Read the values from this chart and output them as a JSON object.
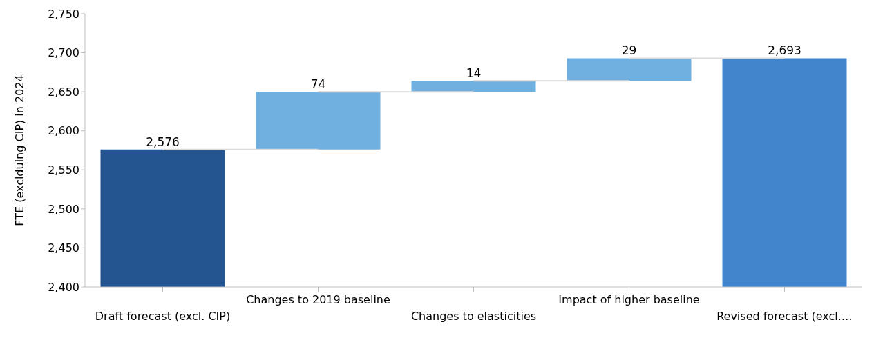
{
  "chart_data": {
    "type": "bar",
    "ylabel": "FTE (exclduing CIP) in 2024",
    "categories": [
      "Draft forecast (excl. CIP)",
      "Changes to 2019 baseline",
      "Changes to elasticities",
      "Impact of higher baseline",
      "Revised forecast (excl.…"
    ],
    "values": [
      2576,
      74,
      14,
      29,
      2693
    ],
    "base": [
      null,
      2576,
      2650,
      2664,
      null
    ],
    "colors": [
      "#255591",
      "#70b0e0",
      "#70b0e0",
      "#70b0e0",
      "#4285cc"
    ],
    "ylim": [
      2400,
      2750
    ],
    "yticks": [
      {
        "value": 2400,
        "label": "2,400"
      },
      {
        "value": 2450,
        "label": "2,450"
      },
      {
        "value": 2500,
        "label": "2,500"
      },
      {
        "value": 2550,
        "label": "2,550"
      },
      {
        "value": 2600,
        "label": "2,600"
      },
      {
        "value": 2650,
        "label": "2,650"
      },
      {
        "value": 2700,
        "label": "2,700"
      },
      {
        "value": 2750,
        "label": "2,750"
      }
    ],
    "value_labels": [
      "2,576",
      "74",
      "14",
      "29",
      "2,693"
    ],
    "grid": false,
    "legend": false
  }
}
